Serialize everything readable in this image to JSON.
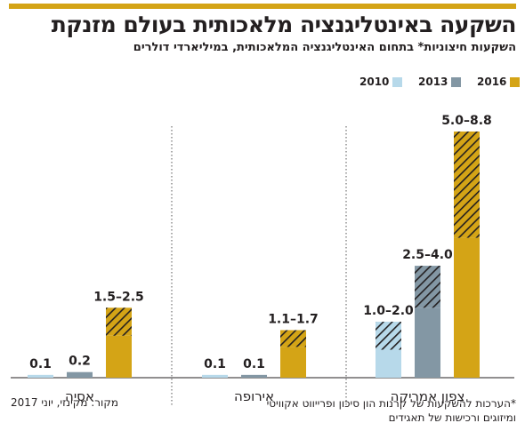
{
  "header": {
    "title": "השקעה באינטליגנציה מלאכותית בעולם מזנקת",
    "subtitle": "השקעות חיצוניות* בתחום האינטליגנציה המלאכותית, במיליארדי דולרים"
  },
  "legend": [
    {
      "label": "2010",
      "color": "#b7d9ea"
    },
    {
      "label": "2013",
      "color": "#8397a4"
    },
    {
      "label": "2016",
      "color": "#d4a416"
    }
  ],
  "chart_data": {
    "type": "bar",
    "title": "השקעה באינטליגנציה מלאכותית בעולם מזנקת",
    "subtitle": "השקעות חיצוניות* בתחום האינטליגנציה המלאכותית, במיליארדי דולרים",
    "unit": "במיליארדי דולרים",
    "categories": [
      "צפון אמריקה",
      "אירופה",
      "אסיה"
    ],
    "series": [
      {
        "name": "2010",
        "color": "#b7d9ea",
        "ranges": [
          [
            1.0,
            2.0
          ],
          [
            0.1,
            0.1
          ],
          [
            0.1,
            0.1
          ]
        ],
        "labels": [
          "1.0–2.0",
          "0.1",
          "0.1"
        ]
      },
      {
        "name": "2013",
        "color": "#8397a4",
        "ranges": [
          [
            2.5,
            4.0
          ],
          [
            0.1,
            0.1
          ],
          [
            0.2,
            0.2
          ]
        ],
        "labels": [
          "2.5–4.0",
          "0.1",
          "0.2"
        ]
      },
      {
        "name": "2016",
        "color": "#d4a416",
        "ranges": [
          [
            5.0,
            8.8
          ],
          [
            1.1,
            1.7
          ],
          [
            1.5,
            2.5
          ]
        ],
        "labels": [
          "5.0–8.8",
          "1.1–1.7",
          "1.5–2.5"
        ]
      }
    ],
    "ylim": [
      0,
      8.8
    ],
    "grid": false,
    "legend_position": "top-left"
  },
  "footer": {
    "footnote_line1": "*הערכות להשקעות של קרנות הון סיכון ופרייווט אקוויטי",
    "footnote_line2": "ומיזוגים ורכישות של תאגידים",
    "source": "מקור: מקינזי, יוני 2017"
  }
}
